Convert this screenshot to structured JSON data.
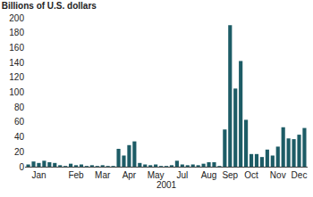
{
  "chart_data": {
    "type": "bar",
    "title": "Billions of U.S. dollars",
    "x_label": "2001",
    "categories": [
      null,
      null,
      "Jan",
      null,
      null,
      null,
      null,
      null,
      null,
      "Feb",
      null,
      null,
      null,
      null,
      "Mar",
      null,
      null,
      null,
      null,
      "Apr",
      null,
      null,
      null,
      null,
      "May",
      null,
      null,
      null,
      null,
      "Jul",
      null,
      null,
      null,
      null,
      "Aug",
      null,
      null,
      null,
      "Sep",
      null,
      null,
      null,
      "Oct",
      null,
      null,
      null,
      null,
      "Nov",
      null,
      null,
      null,
      "Dec",
      null
    ],
    "values": [
      3,
      7,
      5,
      8,
      6,
      5,
      2,
      1,
      4,
      2,
      3,
      1,
      2,
      1,
      2,
      1,
      1,
      24,
      15,
      29,
      34,
      5,
      3,
      2,
      3,
      1,
      1,
      2,
      8,
      3,
      2,
      3,
      2,
      4,
      6,
      6,
      1,
      50,
      190,
      105,
      142,
      63,
      17,
      17,
      13,
      23,
      15,
      27,
      53,
      38,
      37,
      43,
      52
    ],
    "color": "#1d5c66",
    "ylim": [
      0,
      200
    ],
    "yticks": [
      0,
      20,
      40,
      60,
      80,
      100,
      120,
      140,
      160,
      180,
      200
    ],
    "grid": false
  }
}
